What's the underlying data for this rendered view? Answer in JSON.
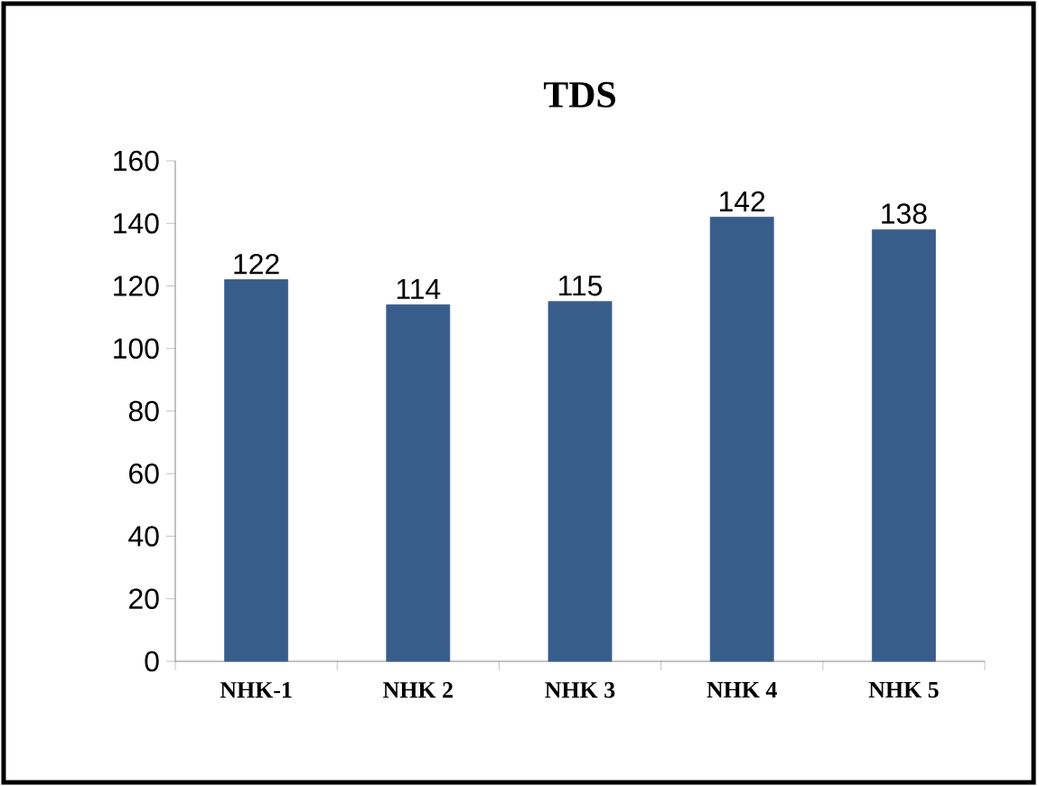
{
  "chart_data": {
    "type": "bar",
    "title": "TDS",
    "categories": [
      "NHK-1",
      "NHK 2",
      "NHK 3",
      "NHK 4",
      "NHK 5"
    ],
    "values": [
      122,
      114,
      115,
      142,
      138
    ],
    "color": "#385d8a",
    "ylim": [
      0,
      160
    ],
    "yticks": [
      0,
      20,
      40,
      60,
      80,
      100,
      120,
      140,
      160
    ],
    "grid": false,
    "data_labels": true
  }
}
